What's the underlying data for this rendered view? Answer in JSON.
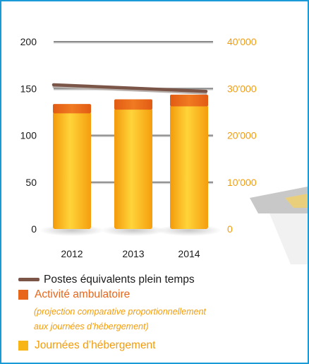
{
  "chart_data": {
    "type": "bar",
    "categories": [
      "2012",
      "2013",
      "2014"
    ],
    "series": [
      {
        "name": "Journées d’hébergement",
        "axis": "right",
        "values": [
          25000,
          25800,
          26500
        ],
        "color": "#f7b615"
      },
      {
        "name": "Activité ambulatoire",
        "axis": "right",
        "values": [
          1700,
          1900,
          2200
        ],
        "color": "#e8661a",
        "note": "(projection comparative proportionnellement aux journées d’hébergement)"
      },
      {
        "name": "Postes équivalents plein temps",
        "type": "line",
        "axis": "left",
        "values": [
          154,
          150,
          147
        ],
        "color": "#7a5548"
      }
    ],
    "y_left": {
      "ticks": [
        "0",
        "50",
        "100",
        "150",
        "200"
      ],
      "ylim": [
        0,
        200
      ]
    },
    "y_right": {
      "ticks": [
        "0",
        "10'000",
        "20'000",
        "30'000",
        "40'000"
      ],
      "ylim": [
        0,
        40000
      ],
      "color": "#f39c0b"
    },
    "grid": true,
    "legend_position": "bottom"
  },
  "legend": {
    "line_label": "Postes équivalents plein temps",
    "ambulatoire_label": "Activité ambulatoire",
    "ambulatoire_note_1": "(projection comparative proportionnellement",
    "ambulatoire_note_2": "aux journées d’hébergement)",
    "hebergement_label": "Journées d’hébergement"
  }
}
